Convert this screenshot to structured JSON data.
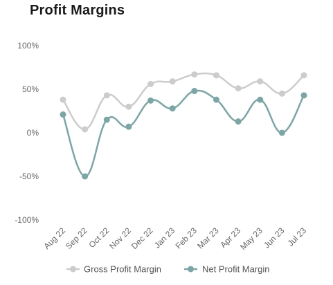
{
  "chart_data": {
    "type": "line",
    "title": "Profit Margins",
    "categories": [
      "Aug 22",
      "Sep 22",
      "Oct 22",
      "Nov 22",
      "Dec 22",
      "Jan 23",
      "Feb 23",
      "Mar 23",
      "Apr 23",
      "May 23",
      "Jun 23",
      "Jul 23"
    ],
    "series": [
      {
        "name": "Gross Profit Margin",
        "color": "#cccccc",
        "values": [
          38,
          4,
          43,
          30,
          56,
          59,
          67,
          66,
          51,
          59,
          45,
          66
        ]
      },
      {
        "name": "Net Profit Margin",
        "color": "#7ba6a6",
        "values": [
          21,
          -50,
          15,
          7,
          37,
          28,
          48,
          38,
          13,
          38,
          0,
          43
        ]
      }
    ],
    "yticks": [
      "100%",
      "50%",
      "0%",
      "-50%",
      "-100%"
    ],
    "ylim": [
      -100,
      100
    ],
    "xlabel": "",
    "ylabel": "",
    "grid": false,
    "legend_position": "bottom"
  }
}
